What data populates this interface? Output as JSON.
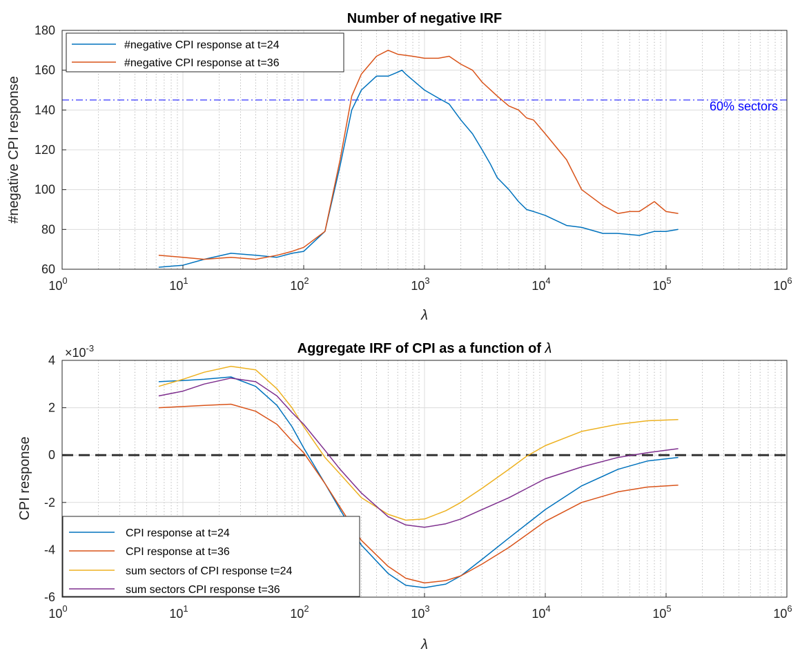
{
  "chart_data": [
    {
      "type": "line",
      "title": "Number of negative IRF",
      "xlabel": "λ",
      "ylabel": "#negative CPI response",
      "xscale": "log",
      "xlim": [
        1,
        1000000
      ],
      "ylim": [
        60,
        180
      ],
      "yticks": [
        60,
        80,
        100,
        120,
        140,
        160,
        180
      ],
      "xtick_bases": [
        "10",
        "10",
        "10",
        "10",
        "10",
        "10",
        "10"
      ],
      "xtick_exponents": [
        "0",
        "1",
        "2",
        "3",
        "4",
        "5",
        "6"
      ],
      "grid": true,
      "legend_position": "top-left",
      "series": [
        {
          "name": "#negative CPI response at t=24",
          "color": "#0072BD",
          "points": [
            [
              6.3,
              61
            ],
            [
              10,
              62
            ],
            [
              15,
              65
            ],
            [
              25,
              68
            ],
            [
              40,
              67
            ],
            [
              60,
              66
            ],
            [
              80,
              68
            ],
            [
              100,
              69
            ],
            [
              150,
              79
            ],
            [
              200,
              112
            ],
            [
              250,
              140
            ],
            [
              300,
              150
            ],
            [
              400,
              157
            ],
            [
              500,
              157
            ],
            [
              600,
              159
            ],
            [
              650,
              160
            ],
            [
              700,
              158
            ],
            [
              800,
              155
            ],
            [
              1000,
              150
            ],
            [
              1300,
              146
            ],
            [
              1600,
              143
            ],
            [
              2000,
              135
            ],
            [
              2500,
              128
            ],
            [
              3000,
              120
            ],
            [
              3500,
              113
            ],
            [
              4000,
              106
            ],
            [
              5000,
              100
            ],
            [
              6000,
              94
            ],
            [
              7000,
              90
            ],
            [
              8000,
              89
            ],
            [
              10000,
              87
            ],
            [
              15000,
              82
            ],
            [
              20000,
              81
            ],
            [
              30000,
              78
            ],
            [
              40000,
              78
            ],
            [
              60000,
              77
            ],
            [
              80000,
              79
            ],
            [
              100000,
              79
            ],
            [
              126000,
              80
            ]
          ]
        },
        {
          "name": "#negative CPI response at t=36",
          "color": "#D95319",
          "points": [
            [
              6.3,
              67
            ],
            [
              10,
              66
            ],
            [
              15,
              65
            ],
            [
              25,
              66
            ],
            [
              40,
              65
            ],
            [
              60,
              67
            ],
            [
              80,
              69
            ],
            [
              100,
              71
            ],
            [
              150,
              79
            ],
            [
              200,
              115
            ],
            [
              250,
              147
            ],
            [
              300,
              158
            ],
            [
              400,
              167
            ],
            [
              500,
              170
            ],
            [
              600,
              168
            ],
            [
              800,
              167
            ],
            [
              1000,
              166
            ],
            [
              1300,
              166
            ],
            [
              1600,
              167
            ],
            [
              2000,
              163
            ],
            [
              2500,
              160
            ],
            [
              3000,
              154
            ],
            [
              4000,
              147
            ],
            [
              5000,
              142
            ],
            [
              6000,
              140
            ],
            [
              7000,
              136
            ],
            [
              8000,
              135
            ],
            [
              10000,
              128
            ],
            [
              15000,
              115
            ],
            [
              20000,
              100
            ],
            [
              30000,
              92
            ],
            [
              40000,
              88
            ],
            [
              50000,
              89
            ],
            [
              60000,
              89
            ],
            [
              80000,
              94
            ],
            [
              100000,
              89
            ],
            [
              126000,
              88
            ]
          ]
        }
      ],
      "hline": {
        "y": 145,
        "label": "60% sectors",
        "color": "#0000FF"
      }
    },
    {
      "type": "line",
      "title": "Aggregate IRF of CPI as a function of ",
      "title_symbol": "λ",
      "xlabel": "λ",
      "ylabel": "CPI response",
      "exponent_label": "×10",
      "exponent_value": "-3",
      "xscale": "log",
      "xlim": [
        1,
        1000000
      ],
      "ylim": [
        -6,
        4
      ],
      "yticks": [
        -6,
        -4,
        -2,
        0,
        2,
        4
      ],
      "xtick_bases": [
        "10",
        "10",
        "10",
        "10",
        "10",
        "10",
        "10"
      ],
      "xtick_exponents": [
        "0",
        "1",
        "2",
        "3",
        "4",
        "5",
        "6"
      ],
      "grid": true,
      "legend_position": "bottom-left",
      "hline": {
        "y": 0,
        "style": "dashed",
        "color": "#333333"
      },
      "series": [
        {
          "name": "CPI response at t=24",
          "color": "#0072BD",
          "points": [
            [
              6.3,
              3.1
            ],
            [
              10,
              3.15
            ],
            [
              15,
              3.2
            ],
            [
              25,
              3.3
            ],
            [
              40,
              2.9
            ],
            [
              60,
              2.1
            ],
            [
              80,
              1.2
            ],
            [
              100,
              0.3
            ],
            [
              150,
              -1.2
            ],
            [
              200,
              -2.3
            ],
            [
              300,
              -3.8
            ],
            [
              500,
              -5.0
            ],
            [
              700,
              -5.5
            ],
            [
              1000,
              -5.6
            ],
            [
              1500,
              -5.45
            ],
            [
              2000,
              -5.1
            ],
            [
              3000,
              -4.4
            ],
            [
              5000,
              -3.5
            ],
            [
              10000,
              -2.3
            ],
            [
              20000,
              -1.3
            ],
            [
              40000,
              -0.6
            ],
            [
              70000,
              -0.25
            ],
            [
              126000,
              -0.1
            ]
          ]
        },
        {
          "name": "CPI response at t=36",
          "color": "#D95319",
          "points": [
            [
              6.3,
              2.0
            ],
            [
              10,
              2.05
            ],
            [
              15,
              2.1
            ],
            [
              25,
              2.15
            ],
            [
              40,
              1.85
            ],
            [
              60,
              1.3
            ],
            [
              80,
              0.6
            ],
            [
              100,
              0.1
            ],
            [
              150,
              -1.2
            ],
            [
              200,
              -2.2
            ],
            [
              300,
              -3.6
            ],
            [
              500,
              -4.7
            ],
            [
              700,
              -5.2
            ],
            [
              1000,
              -5.4
            ],
            [
              1500,
              -5.3
            ],
            [
              2000,
              -5.1
            ],
            [
              3000,
              -4.6
            ],
            [
              5000,
              -3.9
            ],
            [
              10000,
              -2.8
            ],
            [
              20000,
              -2.0
            ],
            [
              40000,
              -1.55
            ],
            [
              70000,
              -1.35
            ],
            [
              126000,
              -1.27
            ]
          ]
        },
        {
          "name": "sum sectors of CPI response t=24",
          "color": "#EDB120",
          "points": [
            [
              6.3,
              2.9
            ],
            [
              10,
              3.2
            ],
            [
              15,
              3.5
            ],
            [
              25,
              3.75
            ],
            [
              40,
              3.6
            ],
            [
              60,
              2.8
            ],
            [
              80,
              2.0
            ],
            [
              100,
              1.2
            ],
            [
              150,
              -0.1
            ],
            [
              200,
              -0.8
            ],
            [
              300,
              -1.8
            ],
            [
              500,
              -2.5
            ],
            [
              700,
              -2.75
            ],
            [
              1000,
              -2.7
            ],
            [
              1500,
              -2.35
            ],
            [
              2000,
              -2.0
            ],
            [
              3000,
              -1.4
            ],
            [
              5000,
              -0.6
            ],
            [
              7000,
              -0.05
            ],
            [
              10000,
              0.4
            ],
            [
              20000,
              1.0
            ],
            [
              40000,
              1.3
            ],
            [
              70000,
              1.45
            ],
            [
              126000,
              1.5
            ]
          ]
        },
        {
          "name": "sum sectors CPI response t=36",
          "color": "#7E2F8E",
          "points": [
            [
              6.3,
              2.5
            ],
            [
              10,
              2.7
            ],
            [
              15,
              3.0
            ],
            [
              25,
              3.25
            ],
            [
              40,
              3.1
            ],
            [
              60,
              2.5
            ],
            [
              80,
              1.8
            ],
            [
              100,
              1.3
            ],
            [
              150,
              0.2
            ],
            [
              200,
              -0.6
            ],
            [
              300,
              -1.6
            ],
            [
              500,
              -2.6
            ],
            [
              700,
              -2.95
            ],
            [
              1000,
              -3.05
            ],
            [
              1500,
              -2.9
            ],
            [
              2000,
              -2.7
            ],
            [
              3000,
              -2.3
            ],
            [
              5000,
              -1.8
            ],
            [
              10000,
              -1.0
            ],
            [
              20000,
              -0.5
            ],
            [
              40000,
              -0.1
            ],
            [
              70000,
              0.1
            ],
            [
              126000,
              0.27
            ]
          ]
        }
      ]
    }
  ]
}
